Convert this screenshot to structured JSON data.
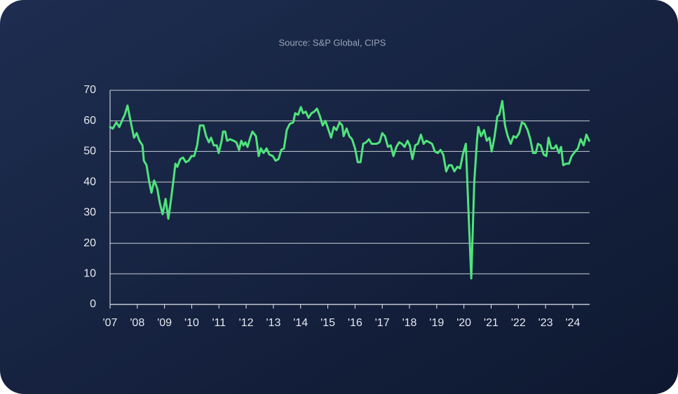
{
  "chart_data": {
    "type": "line",
    "subtitle": "Source: S&P Global, CIPS",
    "color": "#4fe37c",
    "grid": true,
    "xlim": [
      2007,
      2024.62
    ],
    "ylim": [
      0,
      70
    ],
    "yticks": [
      0,
      10,
      20,
      30,
      40,
      50,
      60,
      70
    ],
    "xticks": [
      {
        "value": 2007,
        "label": "'07"
      },
      {
        "value": 2008,
        "label": "'08"
      },
      {
        "value": 2009,
        "label": "'09"
      },
      {
        "value": 2010,
        "label": "'10"
      },
      {
        "value": 2011,
        "label": "'11"
      },
      {
        "value": 2012,
        "label": "'12"
      },
      {
        "value": 2013,
        "label": "'13"
      },
      {
        "value": 2014,
        "label": "'14"
      },
      {
        "value": 2015,
        "label": "'15"
      },
      {
        "value": 2016,
        "label": "'16"
      },
      {
        "value": 2017,
        "label": "'17"
      },
      {
        "value": 2018,
        "label": "'18"
      },
      {
        "value": 2019,
        "label": "'19"
      },
      {
        "value": 2020,
        "label": "'20"
      },
      {
        "value": 2021,
        "label": "'21"
      },
      {
        "value": 2022,
        "label": "'22"
      },
      {
        "value": 2023,
        "label": "'23"
      },
      {
        "value": 2024,
        "label": "'24"
      }
    ],
    "x": [
      2007.0,
      2007.1,
      2007.23,
      2007.34,
      2007.46,
      2007.54,
      2007.64,
      2007.75,
      2007.88,
      2007.98,
      2008.08,
      2008.19,
      2008.24,
      2008.34,
      2008.44,
      2008.52,
      2008.62,
      2008.73,
      2008.83,
      2008.93,
      2009.04,
      2009.14,
      2009.22,
      2009.32,
      2009.4,
      2009.47,
      2009.58,
      2009.68,
      2009.78,
      2009.89,
      2009.99,
      2010.09,
      2010.2,
      2010.3,
      2010.43,
      2010.53,
      2010.63,
      2010.71,
      2010.81,
      2010.92,
      2010.99,
      2011.1,
      2011.15,
      2011.23,
      2011.3,
      2011.41,
      2011.54,
      2011.64,
      2011.74,
      2011.82,
      2011.9,
      2011.97,
      2012.05,
      2012.15,
      2012.23,
      2012.36,
      2012.46,
      2012.54,
      2012.64,
      2012.75,
      2012.85,
      2012.98,
      2013.08,
      2013.19,
      2013.29,
      2013.39,
      2013.49,
      2013.6,
      2013.73,
      2013.8,
      2013.91,
      2014.01,
      2014.09,
      2014.19,
      2014.29,
      2014.4,
      2014.5,
      2014.6,
      2014.71,
      2014.81,
      2014.91,
      2014.99,
      2015.12,
      2015.22,
      2015.32,
      2015.43,
      2015.53,
      2015.58,
      2015.69,
      2015.79,
      2015.89,
      2016.0,
      2016.1,
      2016.2,
      2016.3,
      2016.41,
      2016.51,
      2016.61,
      2016.79,
      2016.9,
      2017.0,
      2017.1,
      2017.21,
      2017.31,
      2017.41,
      2017.52,
      2017.62,
      2017.72,
      2017.82,
      2017.93,
      2018.01,
      2018.11,
      2018.21,
      2018.31,
      2018.42,
      2018.52,
      2018.62,
      2018.73,
      2018.83,
      2018.93,
      2019.04,
      2019.14,
      2019.24,
      2019.35,
      2019.45,
      2019.55,
      2019.65,
      2019.76,
      2019.86,
      2019.96,
      2020.07,
      2020.17,
      2020.27,
      2020.38,
      2020.48,
      2020.53,
      2020.63,
      2020.74,
      2020.84,
      2020.94,
      2021.02,
      2021.12,
      2021.23,
      2021.3,
      2021.41,
      2021.51,
      2021.61,
      2021.72,
      2021.82,
      2021.92,
      2022.03,
      2022.13,
      2022.23,
      2022.34,
      2022.44,
      2022.54,
      2022.64,
      2022.72,
      2022.82,
      2022.93,
      2023.03,
      2023.11,
      2023.21,
      2023.31,
      2023.39,
      2023.49,
      2023.57,
      2023.65,
      2023.75,
      2023.86,
      2023.96,
      2024.09,
      2024.19,
      2024.29,
      2024.4,
      2024.5,
      2024.6
    ],
    "values": [
      58,
      57.5,
      59.5,
      58,
      60.5,
      62,
      65,
      60,
      54.5,
      56,
      53.5,
      52,
      47,
      45.5,
      40,
      36.5,
      40.5,
      38,
      33,
      29.5,
      34.5,
      28,
      33,
      40,
      46,
      45,
      47.5,
      48,
      46.5,
      47,
      48.5,
      48.5,
      52,
      58.5,
      58.5,
      55,
      53,
      54.5,
      52,
      52,
      49.5,
      53.5,
      56.5,
      56.5,
      53.5,
      54,
      53.5,
      53,
      50.5,
      53.5,
      52,
      53,
      51.5,
      54.5,
      56.5,
      55,
      48.5,
      51,
      49.5,
      51,
      49,
      48.5,
      47,
      47.5,
      50.5,
      51,
      57,
      59,
      59.5,
      62.5,
      62,
      64.5,
      62.5,
      63,
      61,
      62.5,
      63,
      64,
      61.5,
      58.5,
      60,
      58,
      54.5,
      58,
      57,
      59.5,
      58.5,
      55,
      57.5,
      55,
      54,
      51,
      46.5,
      46.5,
      52.5,
      53,
      54,
      52.5,
      52.5,
      53,
      56,
      55,
      51.5,
      52,
      48.5,
      51.5,
      53,
      52.5,
      51.5,
      53.5,
      52,
      47.5,
      52,
      52.5,
      55.5,
      52.5,
      53.5,
      53,
      52.5,
      50,
      49.5,
      50.5,
      49,
      43.5,
      45.5,
      45.5,
      43.5,
      45,
      44.5,
      49,
      52.5,
      30,
      8.5,
      40,
      53.5,
      58,
      55,
      57,
      53.5,
      54.5,
      50,
      54.5,
      61.5,
      62,
      66.5,
      58.5,
      55,
      52.5,
      55,
      54.5,
      56,
      59.5,
      59,
      57,
      54,
      49.5,
      49.5,
      52.5,
      52,
      49,
      48.5,
      54.5,
      51,
      51,
      52,
      49.5,
      51.5,
      45.5,
      46,
      46,
      48.5,
      50,
      51,
      54,
      52,
      55.5,
      53.5
    ]
  }
}
